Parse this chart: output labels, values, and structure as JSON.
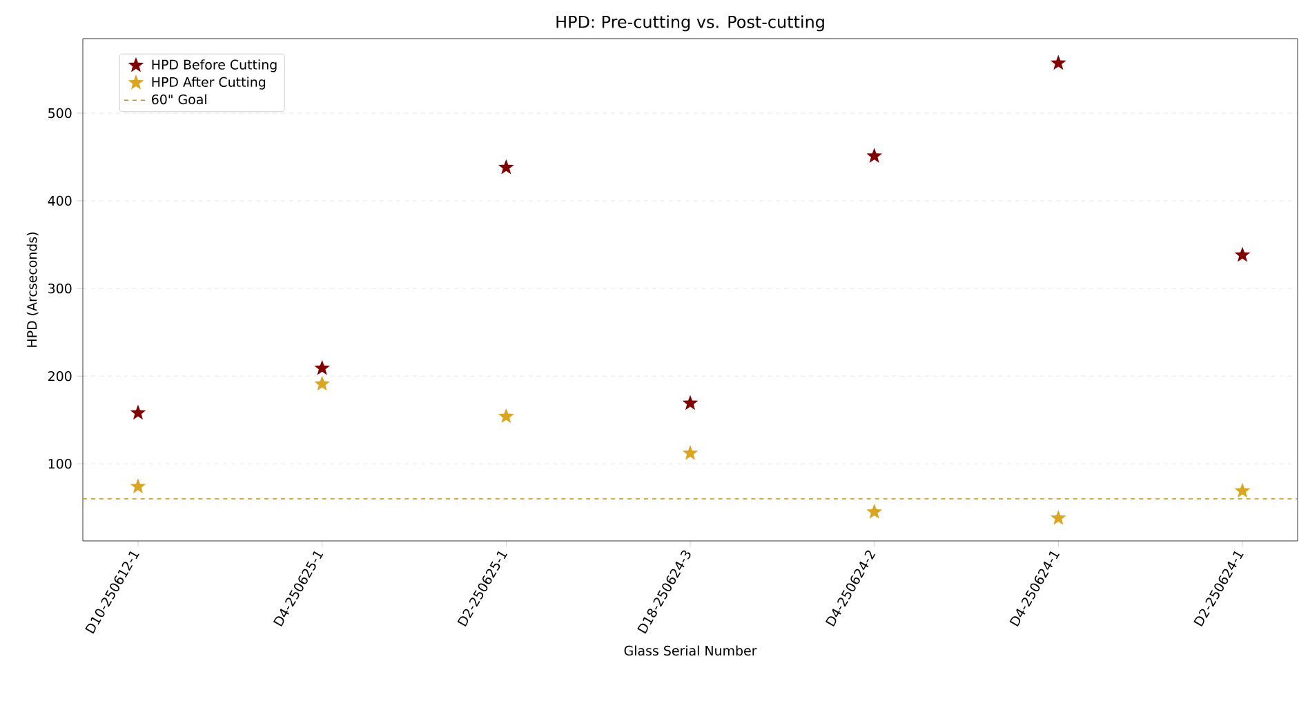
{
  "chart_data": {
    "type": "scatter",
    "title": "HPD: Pre-cutting vs. Post-cutting",
    "xlabel": "Glass Serial Number",
    "ylabel": "HPD (Arcseconds)",
    "categories": [
      "D10-250612-1",
      "D4-250625-1",
      "D2-250625-1",
      "D18-250624-3",
      "D4-250624-2",
      "D4-250624-1",
      "D2-250624-1"
    ],
    "series": [
      {
        "name": "HPD Before Cutting",
        "color": "#800000",
        "values": [
          158,
          209,
          438,
          169,
          451,
          557,
          338
        ]
      },
      {
        "name": "HPD After Cutting",
        "color": "#daa520",
        "values": [
          74,
          191,
          154,
          112,
          45,
          38,
          69
        ]
      }
    ],
    "ref_lines": [
      {
        "axis": "y",
        "value": 60,
        "label": "60\" Goal",
        "color": "#cc8f00",
        "line_style": "dashed"
      }
    ],
    "ylim": [
      12,
      585
    ],
    "yticks": [
      100,
      200,
      300,
      400,
      500
    ],
    "grid": "y",
    "legend": "top left",
    "marker": "star"
  }
}
